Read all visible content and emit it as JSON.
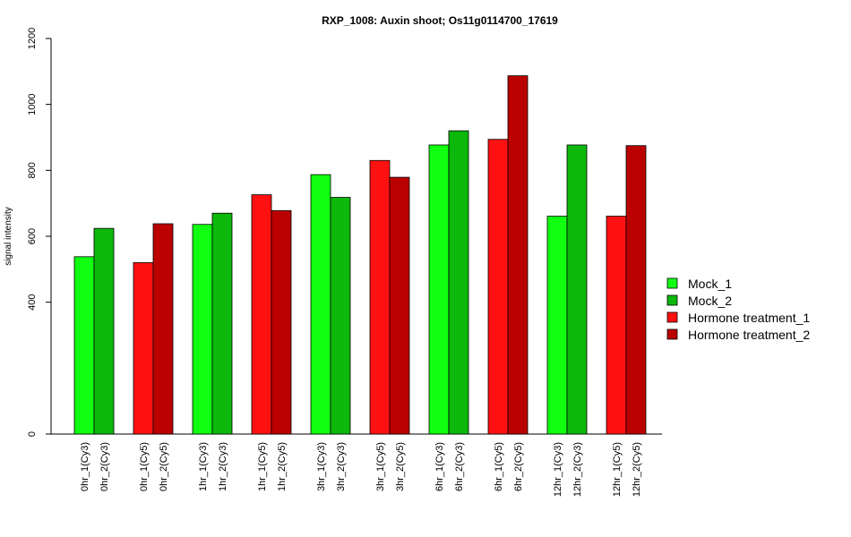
{
  "chart_data": {
    "type": "bar",
    "title": "RXP_1008: Auxin shoot; Os11g0114700_17619",
    "xlabel": "",
    "ylabel": "signal intensity",
    "ylim": [
      0,
      1200
    ],
    "yticks": [
      0,
      400,
      600,
      800,
      1000,
      1200
    ],
    "grid": false,
    "legend_position": "right",
    "colors": {
      "Mock_1": "#11ff11",
      "Mock_2": "#0cb80c",
      "Hormone treatment_1": "#ff1111",
      "Hormone treatment_2": "#bb0000"
    },
    "legend": [
      {
        "name": "Mock_1",
        "color": "#11ff11"
      },
      {
        "name": "Mock_2",
        "color": "#0cb80c"
      },
      {
        "name": "Hormone treatment_1",
        "color": "#ff1111"
      },
      {
        "name": "Hormone treatment_2",
        "color": "#bb0000"
      }
    ],
    "groups": [
      {
        "bars": [
          {
            "label": "0hr_1(Cy3)",
            "value": 538,
            "series": "Mock_1"
          },
          {
            "label": "0hr_2(Cy3)",
            "value": 624,
            "series": "Mock_2"
          }
        ]
      },
      {
        "bars": [
          {
            "label": "0hr_1(Cy5)",
            "value": 520,
            "series": "Hormone treatment_1"
          },
          {
            "label": "0hr_2(Cy5)",
            "value": 638,
            "series": "Hormone treatment_2"
          }
        ]
      },
      {
        "bars": [
          {
            "label": "1hr_1(Cy3)",
            "value": 636,
            "series": "Mock_1"
          },
          {
            "label": "1hr_2(Cy3)",
            "value": 670,
            "series": "Mock_2"
          }
        ]
      },
      {
        "bars": [
          {
            "label": "1hr_1(Cy5)",
            "value": 726,
            "series": "Hormone treatment_1"
          },
          {
            "label": "1hr_2(Cy5)",
            "value": 678,
            "series": "Hormone treatment_2"
          }
        ]
      },
      {
        "bars": [
          {
            "label": "3hr_1(Cy3)",
            "value": 787,
            "series": "Mock_1"
          },
          {
            "label": "3hr_2(Cy3)",
            "value": 718,
            "series": "Mock_2"
          }
        ]
      },
      {
        "bars": [
          {
            "label": "3hr_1(Cy5)",
            "value": 830,
            "series": "Hormone treatment_1"
          },
          {
            "label": "3hr_2(Cy5)",
            "value": 779,
            "series": "Hormone treatment_2"
          }
        ]
      },
      {
        "bars": [
          {
            "label": "6hr_1(Cy3)",
            "value": 877,
            "series": "Mock_1"
          },
          {
            "label": "6hr_2(Cy3)",
            "value": 920,
            "series": "Mock_2"
          }
        ]
      },
      {
        "bars": [
          {
            "label": "6hr_1(Cy5)",
            "value": 894,
            "series": "Hormone treatment_1"
          },
          {
            "label": "6hr_2(Cy5)",
            "value": 1087,
            "series": "Hormone treatment_2"
          }
        ]
      },
      {
        "bars": [
          {
            "label": "12hr_1(Cy3)",
            "value": 661,
            "series": "Mock_1"
          },
          {
            "label": "12hr_2(Cy3)",
            "value": 877,
            "series": "Mock_2"
          }
        ]
      },
      {
        "bars": [
          {
            "label": "12hr_1(Cy5)",
            "value": 661,
            "series": "Hormone treatment_1"
          },
          {
            "label": "12hr_2(Cy5)",
            "value": 875,
            "series": "Hormone treatment_2"
          }
        ]
      }
    ]
  }
}
